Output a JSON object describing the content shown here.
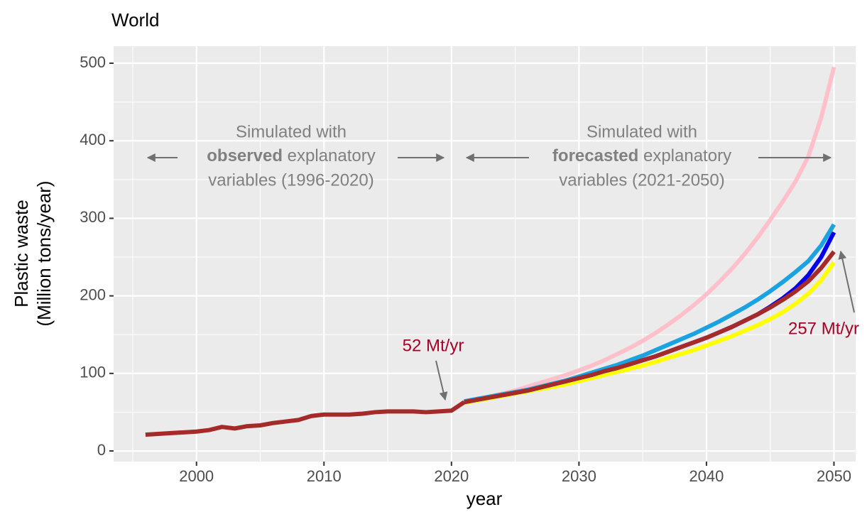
{
  "chart_data": {
    "type": "line",
    "title": "World",
    "ylabel": [
      "Plastic waste",
      "(Million tons/year)"
    ],
    "xlabel": "year",
    "x": [
      1996,
      1997,
      1998,
      1999,
      2000,
      2001,
      2002,
      2003,
      2004,
      2005,
      2006,
      2007,
      2008,
      2009,
      2010,
      2011,
      2012,
      2013,
      2014,
      2015,
      2016,
      2017,
      2018,
      2019,
      2020,
      2021,
      2022,
      2023,
      2024,
      2025,
      2026,
      2027,
      2028,
      2029,
      2030,
      2031,
      2032,
      2033,
      2034,
      2035,
      2036,
      2037,
      2038,
      2039,
      2040,
      2041,
      2042,
      2043,
      2044,
      2045,
      2046,
      2047,
      2048,
      2049,
      2050
    ],
    "series": [
      {
        "color": "#ffc0cb",
        "values": [
          null,
          null,
          null,
          null,
          null,
          null,
          null,
          null,
          null,
          null,
          null,
          null,
          null,
          null,
          null,
          null,
          null,
          null,
          null,
          null,
          null,
          null,
          null,
          null,
          null,
          63,
          66,
          70,
          74,
          78,
          83,
          88,
          93,
          98,
          104,
          110,
          117,
          125,
          133,
          142,
          152,
          163,
          175,
          188,
          202,
          218,
          235,
          254,
          275,
          298,
          322,
          348,
          380,
          430,
          495
        ]
      },
      {
        "color": "#ffff00",
        "values": [
          null,
          null,
          null,
          null,
          null,
          null,
          null,
          null,
          null,
          null,
          null,
          null,
          null,
          null,
          null,
          null,
          null,
          null,
          null,
          null,
          null,
          null,
          null,
          null,
          null,
          62,
          65,
          68,
          71,
          74,
          77,
          80,
          83,
          86,
          90,
          94,
          98,
          102,
          106,
          110,
          115,
          120,
          125,
          130,
          136,
          142,
          148,
          155,
          162,
          170,
          179,
          190,
          203,
          220,
          243
        ]
      },
      {
        "color": "#0000ee",
        "values": [
          null,
          null,
          null,
          null,
          null,
          null,
          null,
          null,
          null,
          null,
          null,
          null,
          null,
          null,
          null,
          null,
          null,
          null,
          null,
          null,
          null,
          null,
          null,
          null,
          null,
          63,
          66,
          69,
          72,
          75,
          78,
          82,
          86,
          90,
          94,
          98,
          103,
          107,
          112,
          117,
          122,
          128,
          134,
          140,
          146,
          153,
          160,
          168,
          176,
          186,
          197,
          210,
          227,
          250,
          282
        ]
      },
      {
        "color": "#1aa3e0",
        "values": [
          null,
          null,
          null,
          null,
          null,
          null,
          null,
          null,
          null,
          null,
          null,
          null,
          null,
          null,
          null,
          null,
          null,
          null,
          null,
          null,
          null,
          null,
          null,
          null,
          null,
          64,
          67,
          70,
          73,
          76,
          79,
          83,
          87,
          91,
          96,
          101,
          106,
          111,
          117,
          123,
          130,
          137,
          144,
          151,
          159,
          167,
          176,
          185,
          195,
          206,
          218,
          231,
          245,
          265,
          292
        ]
      },
      {
        "color": "#a52a2a",
        "values": [
          null,
          null,
          null,
          null,
          null,
          null,
          null,
          null,
          null,
          null,
          null,
          null,
          null,
          null,
          null,
          null,
          null,
          null,
          null,
          null,
          null,
          null,
          null,
          null,
          null,
          63,
          66,
          69,
          72,
          75,
          78,
          82,
          86,
          90,
          94,
          98,
          103,
          107,
          112,
          117,
          122,
          128,
          134,
          140,
          146,
          153,
          160,
          168,
          176,
          185,
          195,
          206,
          219,
          236,
          257
        ]
      },
      {
        "color": "#a52a2a",
        "values": [
          21,
          22,
          23,
          24,
          25,
          27,
          31,
          29,
          32,
          33,
          36,
          38,
          40,
          45,
          47,
          47,
          47,
          48,
          50,
          51,
          51,
          51,
          50,
          51,
          52,
          63,
          null,
          null,
          null,
          null,
          null,
          null,
          null,
          null,
          null,
          null,
          null,
          null,
          null,
          null,
          null,
          null,
          null,
          null,
          null,
          null,
          null,
          null,
          null,
          null,
          null,
          null,
          null,
          null,
          null
        ]
      }
    ],
    "xlim": [
      1993.5,
      2051.7
    ],
    "ylim": [
      -13.7,
      522
    ],
    "xticks": [
      2000,
      2010,
      2020,
      2030,
      2040,
      2050
    ],
    "yticks": [
      0,
      100,
      200,
      300,
      400,
      500
    ],
    "x_minor_grid": [
      1995,
      2005,
      2015,
      2025,
      2035,
      2045
    ],
    "y_minor_grid": [
      50,
      150,
      250,
      350,
      450
    ],
    "grid": true,
    "annotations": [
      "Simulated with",
      "observed",
      "explanatory",
      "variables (1996-2020)",
      "Simulated with",
      "forecasted",
      "explanatory",
      "variables (2021-2050)",
      "52 Mt/yr",
      "257 Mt/yr"
    ]
  }
}
